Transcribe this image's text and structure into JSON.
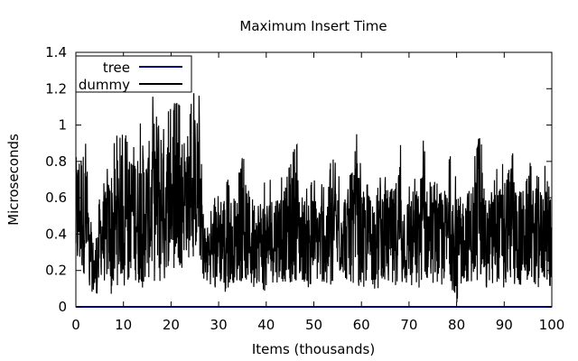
{
  "chart_data": {
    "type": "line",
    "title": "Maximum Insert Time",
    "xlabel": "Items (thousands)",
    "ylabel": "Microseconds",
    "xlim": [
      0,
      100
    ],
    "ylim": [
      0,
      1.4
    ],
    "x_ticks": [
      0,
      10,
      20,
      30,
      40,
      50,
      60,
      70,
      80,
      90,
      100
    ],
    "x_tick_labels": [
      "0",
      "10",
      "20",
      "30",
      "40",
      "50",
      "60",
      "70",
      "80",
      "90",
      "100"
    ],
    "y_ticks": [
      0,
      0.2,
      0.4,
      0.6,
      0.8,
      1.0,
      1.2,
      1.4
    ],
    "y_tick_labels": [
      "0",
      "0.2",
      "0.4",
      "0.6",
      "0.8",
      "1",
      "1.2",
      "1.4"
    ],
    "grid": false,
    "legend_position": "top-left",
    "series": [
      {
        "name": "tree",
        "color": "#000080",
        "description_values": "constant near zero",
        "x": [
          0,
          100
        ],
        "y": [
          0.0,
          0.0
        ]
      },
      {
        "name": "dummy",
        "color": "#000000",
        "x": [
          0,
          1,
          2,
          3,
          4,
          5,
          6,
          7,
          8,
          9,
          10,
          11,
          12,
          13,
          14,
          15,
          16,
          17,
          18,
          19,
          20,
          21,
          22,
          23,
          24,
          25,
          26,
          27,
          28,
          29,
          30,
          31,
          32,
          33,
          34,
          35,
          36,
          37,
          38,
          39,
          40,
          41,
          42,
          43,
          44,
          45,
          46,
          47,
          48,
          49,
          50,
          51,
          52,
          53,
          54,
          55,
          56,
          57,
          58,
          59,
          60,
          61,
          62,
          63,
          64,
          65,
          66,
          67,
          68,
          69,
          70,
          71,
          72,
          73,
          74,
          75,
          76,
          77,
          78,
          79,
          80,
          81,
          82,
          83,
          84,
          85,
          86,
          87,
          88,
          89,
          90,
          91,
          92,
          93,
          94,
          95,
          96,
          97,
          98,
          99,
          100
        ],
        "y_max": [
          0.95,
          1.05,
          0.95,
          0.5,
          0.4,
          0.7,
          0.7,
          0.85,
          0.95,
          0.95,
          1.0,
          0.9,
          1.05,
          1.0,
          1.05,
          1.0,
          1.15,
          1.28,
          1.2,
          1.1,
          1.1,
          1.15,
          1.1,
          1.1,
          1.1,
          1.2,
          1.2,
          0.45,
          0.55,
          0.6,
          0.75,
          0.75,
          0.7,
          0.7,
          0.7,
          0.85,
          0.75,
          0.7,
          0.7,
          0.7,
          0.7,
          0.7,
          0.75,
          0.75,
          0.75,
          0.95,
          1.05,
          0.75,
          0.7,
          0.7,
          0.7,
          0.7,
          0.7,
          0.75,
          0.85,
          0.75,
          0.75,
          0.75,
          0.75,
          0.95,
          0.75,
          0.7,
          0.75,
          0.7,
          0.85,
          0.75,
          0.75,
          0.75,
          1.0,
          0.7,
          0.7,
          0.75,
          0.75,
          0.95,
          0.7,
          0.7,
          0.7,
          0.75,
          0.75,
          0.9,
          0.7,
          0.7,
          0.75,
          0.75,
          0.9,
          0.95,
          0.7,
          0.7,
          0.85,
          0.75,
          0.85,
          0.9,
          0.85,
          0.75,
          0.75,
          0.85,
          0.75,
          0.75,
          0.75,
          0.8,
          0.8
        ],
        "y_min": [
          0.1,
          0.1,
          0.15,
          0.1,
          0.0,
          0.15,
          0.1,
          0.1,
          0.0,
          0.1,
          0.1,
          0.15,
          0.15,
          0.05,
          0.1,
          0.1,
          0.1,
          0.05,
          0.15,
          0.15,
          0.2,
          0.2,
          0.2,
          0.25,
          0.2,
          0.25,
          0.25,
          0.1,
          0.1,
          0.1,
          0.1,
          0.05,
          0.1,
          0.1,
          0.1,
          0.1,
          0.1,
          0.1,
          0.1,
          0.1,
          0.05,
          0.1,
          0.1,
          0.1,
          0.1,
          0.1,
          0.1,
          0.1,
          0.1,
          0.1,
          0.1,
          0.1,
          0.1,
          0.1,
          0.1,
          0.1,
          0.15,
          0.1,
          0.1,
          0.1,
          0.1,
          0.1,
          0.1,
          0.1,
          0.1,
          0.15,
          0.1,
          0.1,
          0.1,
          0.1,
          0.1,
          0.1,
          0.1,
          0.1,
          0.1,
          0.1,
          0.1,
          0.1,
          0.1,
          0.1,
          0.0,
          0.1,
          0.1,
          0.1,
          0.1,
          0.1,
          0.1,
          0.1,
          0.1,
          0.1,
          0.1,
          0.15,
          0.1,
          0.1,
          0.1,
          0.1,
          0.1,
          0.1,
          0.1,
          0.1,
          0.1
        ]
      }
    ]
  }
}
